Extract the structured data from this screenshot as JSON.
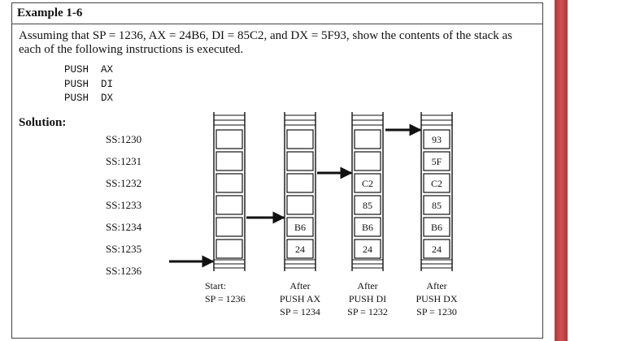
{
  "example": {
    "title": "Example 1-6",
    "problem": "Assuming that SP = 1236, AX = 24B6, DI = 85C2, and DX = 5F93, show the contents of the stack as each of the following instructions is executed.",
    "instructions": [
      "PUSH  AX",
      "PUSH  DI",
      "PUSH  DX"
    ],
    "solution_label": "Solution:"
  },
  "addresses": [
    "SS:1230",
    "SS:1231",
    "SS:1232",
    "SS:1233",
    "SS:1234",
    "SS:1235",
    "SS:1236"
  ],
  "stacks": [
    {
      "cells": [
        "",
        "",
        "",
        "",
        "",
        ""
      ],
      "caption": [
        "Start:",
        "SP = 1236"
      ]
    },
    {
      "cells": [
        "",
        "",
        "",
        "",
        "B6",
        "24"
      ],
      "caption": [
        "After",
        "PUSH AX",
        "SP = 1234"
      ]
    },
    {
      "cells": [
        "",
        "",
        "C2",
        "85",
        "B6",
        "24"
      ],
      "caption": [
        "After",
        "PUSH DI",
        "SP = 1232"
      ]
    },
    {
      "cells": [
        "93",
        "5F",
        "C2",
        "85",
        "B6",
        "24"
      ],
      "caption": [
        "After",
        "PUSH DX",
        "SP = 1230"
      ]
    }
  ],
  "colors": {
    "sidebar": "#c04444",
    "border": "#444444",
    "ink": "#111111"
  }
}
